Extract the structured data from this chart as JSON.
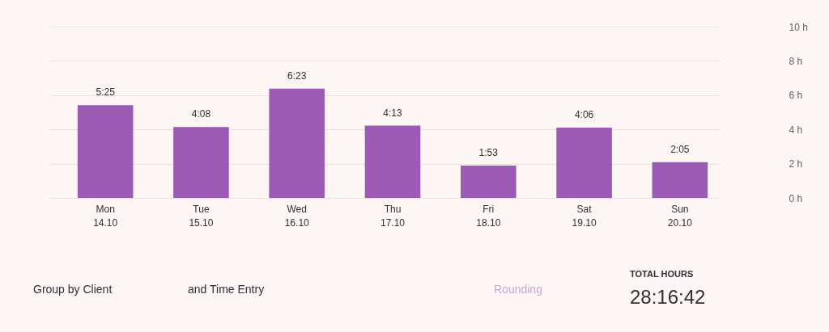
{
  "chart_data": {
    "type": "bar",
    "categories": [
      "Mon\n14.10",
      "Tue\n15.10",
      "Wed\n16.10",
      "Thu\n17.10",
      "Fri\n18.10",
      "Sat\n19.10",
      "Sun\n20.10"
    ],
    "values": [
      5.4167,
      4.1333,
      6.3833,
      4.2167,
      1.8833,
      4.1,
      2.0833
    ],
    "value_labels": [
      "5:25",
      "4:08",
      "6:23",
      "4:13",
      "1:53",
      "4:06",
      "2:05"
    ],
    "color": "#9b5bb4",
    "ylim": [
      0,
      10
    ],
    "yticks": [
      {
        "value": 0,
        "label": "0 h"
      },
      {
        "value": 2,
        "label": "2 h"
      },
      {
        "value": 4,
        "label": "4 h"
      },
      {
        "value": 6,
        "label": "6 h"
      },
      {
        "value": 8,
        "label": "8 h"
      },
      {
        "value": 10,
        "label": "10 h"
      }
    ],
    "grid": "y",
    "annotations": [
      "Group by Client",
      "and Time Entry",
      "Rounding",
      "TOTAL HOURS",
      "28:16:42"
    ]
  }
}
